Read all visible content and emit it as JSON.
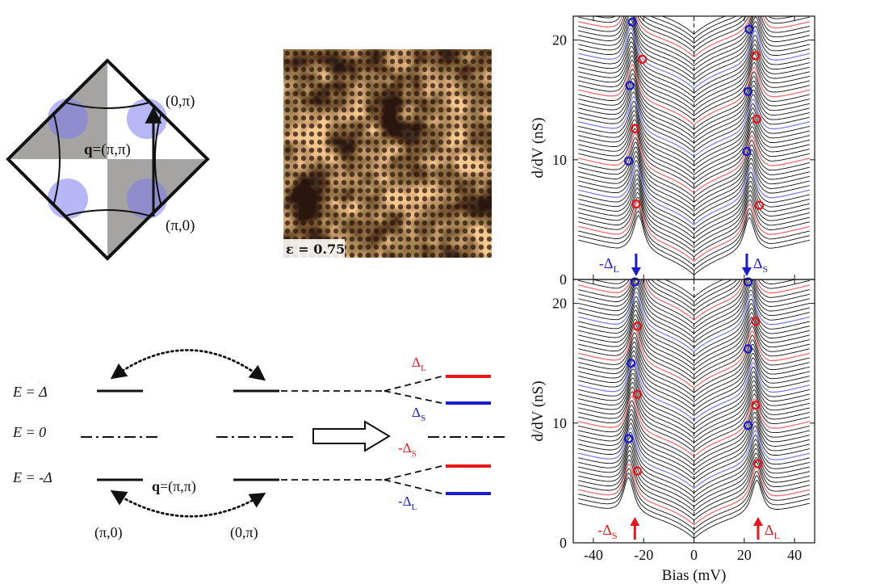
{
  "colors": {
    "trace": "#111111",
    "trace_red": "#f26b6b",
    "trace_blue": "#7d7df0",
    "red": "#e8151b",
    "blue": "#1c1ccf",
    "circle_fill": "#7b7bf0",
    "gray": "#a6a3a3",
    "stm_dark": "#241208",
    "stm_light": "#f7c98e"
  },
  "brillouin": {
    "label_top": "(0,π)",
    "label_bottom": "(π,0)",
    "q_bold": "q",
    "q_rest": "=(π,π)"
  },
  "stm_map": {
    "label": "ε = 0.75"
  },
  "levels": {
    "e_delta": "E = Δ",
    "e_zero": "E = 0",
    "e_minus": "E = -Δ",
    "q_bold": "q",
    "q_rest": "=(π,π)",
    "k_left": "(π,0)",
    "k_right": "(0,π)",
    "delta_L": {
      "base": "Δ",
      "sub": "L"
    },
    "delta_S": {
      "base": "Δ",
      "sub": "S"
    },
    "minus_delta_S": {
      "base": "-Δ",
      "sub": "S"
    },
    "minus_delta_L": {
      "base": "-Δ",
      "sub": "L"
    }
  },
  "chart_data": {
    "type": "line",
    "xlabel": "Bias (mV)",
    "ylabel": "d/dV (nS)",
    "x_ticks": [
      -40,
      -20,
      0,
      20,
      40
    ],
    "xlim": [
      -48,
      48
    ],
    "panels": [
      {
        "name": "top",
        "ylim": [
          0,
          22
        ],
        "y_ticks": [
          0,
          10,
          20
        ],
        "trace_count": 54,
        "offset_step": 0.38,
        "peak_left_range": [
          -22,
          -26
        ],
        "peak_right_range": [
          22,
          25
        ],
        "red_trace_indices": [
          3,
          18,
          33,
          48
        ],
        "blue_trace_indices": [
          11,
          26,
          41
        ],
        "markers": [
          {
            "bias": -23,
            "y": 6.3,
            "color": "red"
          },
          {
            "bias": 26,
            "y": 6.2,
            "color": "red"
          },
          {
            "bias": -26,
            "y": 9.9,
            "color": "blue"
          },
          {
            "bias": 21,
            "y": 10.7,
            "color": "blue"
          },
          {
            "bias": -23.5,
            "y": 12.6,
            "color": "red"
          },
          {
            "bias": 25,
            "y": 13.4,
            "color": "red"
          },
          {
            "bias": -25.5,
            "y": 16.2,
            "color": "blue"
          },
          {
            "bias": 21.5,
            "y": 15.7,
            "color": "blue"
          },
          {
            "bias": -20.5,
            "y": 18.4,
            "color": "red"
          },
          {
            "bias": 24.5,
            "y": 18.7,
            "color": "red"
          },
          {
            "bias": -24.5,
            "y": 21.5,
            "color": "blue"
          },
          {
            "bias": 22,
            "y": 20.9,
            "color": "blue"
          }
        ],
        "arrows": [
          {
            "bias": -23,
            "color": "blue",
            "direction": "down",
            "label": {
              "base": "-Δ",
              "sub": "L"
            }
          },
          {
            "bias": 21,
            "color": "blue",
            "direction": "down",
            "label": {
              "base": "Δ",
              "sub": "S"
            }
          }
        ]
      },
      {
        "name": "bottom",
        "ylim": [
          0,
          22
        ],
        "y_ticks": [
          0,
          10,
          20
        ],
        "trace_count": 54,
        "offset_step": 0.38,
        "peak_left_range": [
          -26,
          -22
        ],
        "peak_right_range": [
          25,
          22
        ],
        "red_trace_indices": [
          3,
          18,
          33,
          48
        ],
        "blue_trace_indices": [
          11,
          26,
          41
        ],
        "markers": [
          {
            "bias": -22.5,
            "y": 6.0,
            "color": "red"
          },
          {
            "bias": 25.5,
            "y": 6.6,
            "color": "red"
          },
          {
            "bias": -26,
            "y": 8.7,
            "color": "blue"
          },
          {
            "bias": 21.5,
            "y": 9.8,
            "color": "blue"
          },
          {
            "bias": -22.5,
            "y": 12.4,
            "color": "red"
          },
          {
            "bias": 24.5,
            "y": 11.5,
            "color": "red"
          },
          {
            "bias": -25,
            "y": 15.0,
            "color": "blue"
          },
          {
            "bias": 21.5,
            "y": 16.2,
            "color": "blue"
          },
          {
            "bias": -22.5,
            "y": 18.1,
            "color": "red"
          },
          {
            "bias": 24.5,
            "y": 18.5,
            "color": "red"
          },
          {
            "bias": -23.5,
            "y": 21.8,
            "color": "blue"
          },
          {
            "bias": 21.5,
            "y": 21.8,
            "color": "blue"
          }
        ],
        "arrows": [
          {
            "bias": -23.5,
            "color": "red",
            "direction": "up",
            "label": {
              "base": "-Δ",
              "sub": "S"
            }
          },
          {
            "bias": 25.5,
            "color": "red",
            "direction": "up",
            "label": {
              "base": "Δ",
              "sub": "L"
            }
          }
        ]
      }
    ]
  }
}
